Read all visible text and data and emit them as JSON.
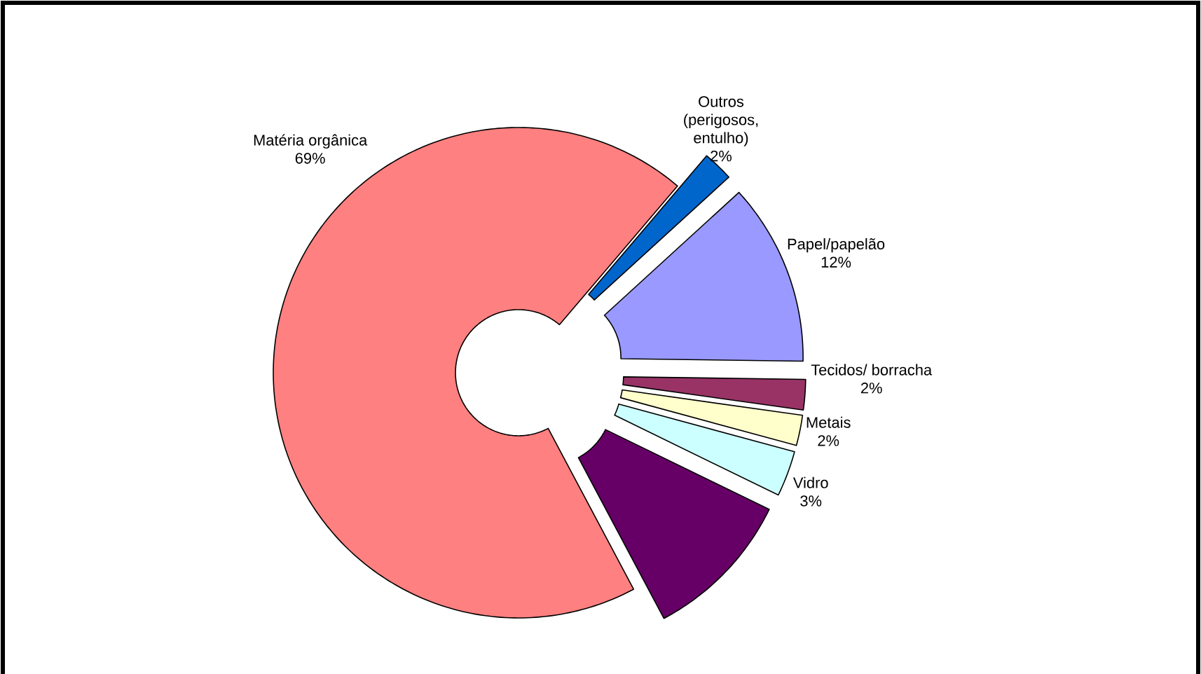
{
  "chart_data": {
    "type": "donut",
    "categories": [
      "Matéria orgânica",
      "Outros (perigosos, entulho)",
      "Papel/papelão",
      "Tecidos/ borracha",
      "Metais",
      "Vidro",
      null
    ],
    "values": [
      69,
      2,
      12,
      2,
      2,
      3,
      10
    ],
    "value_labels": [
      "69%",
      "2%",
      "12%",
      "2%",
      "2%",
      "3%",
      null
    ],
    "colors": [
      "#ff8080",
      "#0066cc",
      "#9999ff",
      "#993366",
      "#ffffcc",
      "#ccffff",
      "#660066"
    ]
  }
}
